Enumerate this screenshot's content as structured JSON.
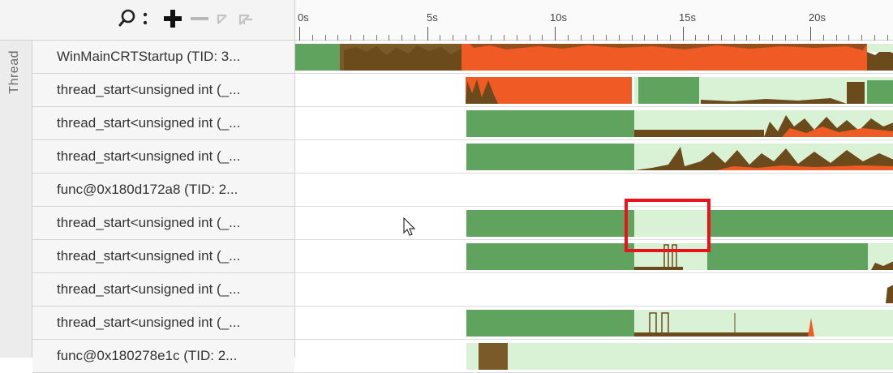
{
  "toolbar": {
    "icons": [
      "search-icon",
      "more-vertical-icon",
      "zoom-in-icon",
      "zoom-out-icon",
      "collapse-icon",
      "collapse-all-icon"
    ]
  },
  "group": {
    "label": "Thread"
  },
  "threads": [
    {
      "label": "WinMainCRTStartup (TID: 3..."
    },
    {
      "label": "thread_start<unsigned int (_..."
    },
    {
      "label": "thread_start<unsigned int (_..."
    },
    {
      "label": "thread_start<unsigned int (_..."
    },
    {
      "label": "func@0x180d172a8 (TID: 2..."
    },
    {
      "label": "thread_start<unsigned int (_..."
    },
    {
      "label": "thread_start<unsigned int (_..."
    },
    {
      "label": "thread_start<unsigned int (_..."
    },
    {
      "label": "thread_start<unsigned int (_..."
    },
    {
      "label": "func@0x180278e1c (TID: 2..."
    }
  ],
  "ruler": {
    "labels": [
      "0s",
      "5s",
      "10s",
      "15s",
      "20s"
    ]
  },
  "colors": {
    "running": "#5fa35f",
    "idle": "#d9f1d5",
    "waiting": "#7a5a28",
    "spinning": "#f05a24",
    "selection": "#e8141c"
  }
}
